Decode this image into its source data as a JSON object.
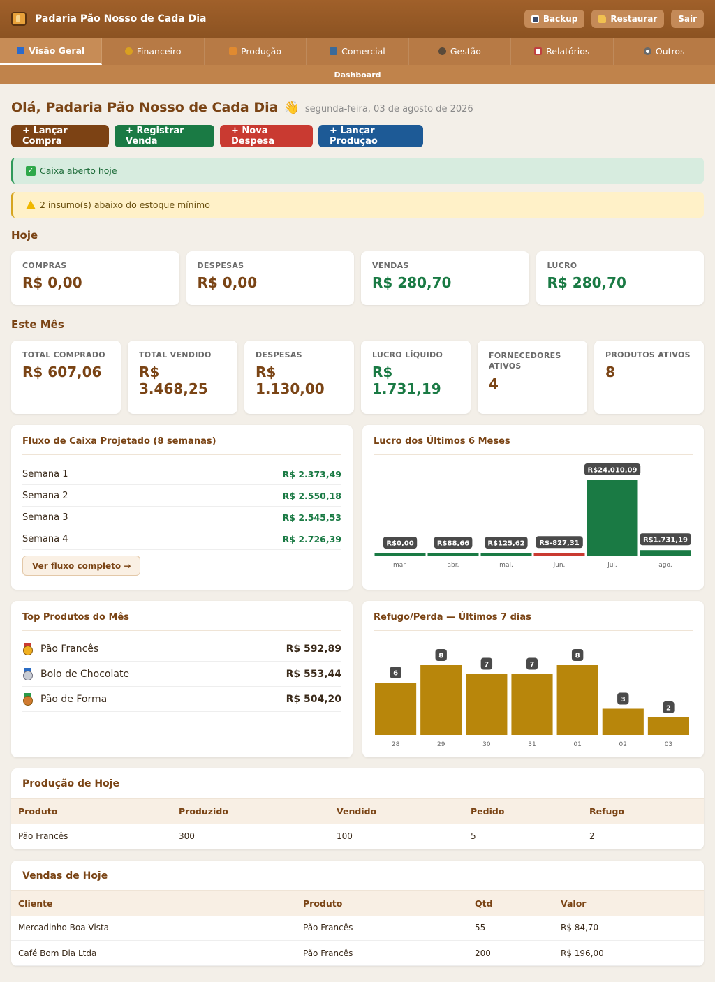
{
  "app": {
    "title": "Padaria Pão Nosso de Cada Dia",
    "backup_label": "Backup",
    "restore_label": "Restaurar",
    "logout_label": "Sair"
  },
  "nav": {
    "tabs": [
      {
        "label": "Visão Geral",
        "icon": "chart-icon",
        "color": "#2a6acc"
      },
      {
        "label": "Financeiro",
        "icon": "money-bag-icon",
        "color": "#d9a020"
      },
      {
        "label": "Produção",
        "icon": "bread-icon",
        "color": "#e08a30"
      },
      {
        "label": "Comercial",
        "icon": "cart-icon",
        "color": "#3a6a9a"
      },
      {
        "label": "Gestão",
        "icon": "people-icon",
        "color": "#5a4a3a"
      },
      {
        "label": "Relatórios",
        "icon": "report-icon",
        "color": "#c04040"
      },
      {
        "label": "Outros",
        "icon": "gear-icon",
        "color": "#6a6a6a"
      }
    ],
    "subnav": "Dashboard"
  },
  "greeting": {
    "title": "Olá, Padaria Pão Nosso de Cada Dia",
    "date": "segunda-feira, 03 de agosto de 2026"
  },
  "actions": {
    "buy": "+ Lançar Compra",
    "sale": "+ Registrar Venda",
    "expense": "+ Nova Despesa",
    "production": "+ Lançar Produção"
  },
  "alerts": {
    "cash": "Caixa aberto hoje",
    "stock": "2 insumo(s) abaixo do estoque mínimo"
  },
  "today": {
    "title": "Hoje",
    "cards": [
      {
        "label": "COMPRAS",
        "value": "R$ 0,00",
        "tone": "brown"
      },
      {
        "label": "DESPESAS",
        "value": "R$ 0,00",
        "tone": "brown"
      },
      {
        "label": "VENDAS",
        "value": "R$ 280,70",
        "tone": "green"
      },
      {
        "label": "LUCRO",
        "value": "R$ 280,70",
        "tone": "green"
      }
    ]
  },
  "month": {
    "title": "Este Mês",
    "cards": [
      {
        "label": "TOTAL COMPRADO",
        "value": "R$ 607,06",
        "tone": "brown"
      },
      {
        "label": "TOTAL VENDIDO",
        "value": "R$ 3.468,25",
        "tone": "brown"
      },
      {
        "label": "DESPESAS",
        "value": "R$ 1.130,00",
        "tone": "brown"
      },
      {
        "label": "LUCRO LÍQUIDO",
        "value": "R$ 1.731,19",
        "tone": "green"
      },
      {
        "label": "FORNECEDORES ATIVOS",
        "value": "4",
        "tone": "brown"
      },
      {
        "label": "PRODUTOS ATIVOS",
        "value": "8",
        "tone": "brown"
      }
    ]
  },
  "cashflow": {
    "title": "Fluxo de Caixa Projetado (8 semanas)",
    "rows": [
      {
        "week": "Semana 1",
        "value": "R$ 2.373,49"
      },
      {
        "week": "Semana 2",
        "value": "R$ 2.550,18"
      },
      {
        "week": "Semana 3",
        "value": "R$ 2.545,53"
      },
      {
        "week": "Semana 4",
        "value": "R$ 2.726,39"
      }
    ],
    "link": "Ver fluxo completo →"
  },
  "top_products": {
    "title": "Top Produtos do Mês",
    "items": [
      {
        "name": "Pão Francês",
        "value": "R$ 592,89",
        "medal": "gold"
      },
      {
        "name": "Bolo de Chocolate",
        "value": "R$ 553,44",
        "medal": "silver"
      },
      {
        "name": "Pão de Forma",
        "value": "R$ 504,20",
        "medal": "bronze"
      }
    ]
  },
  "production_today": {
    "title": "Produção de Hoje",
    "headers": [
      "Produto",
      "Produzido",
      "Vendido",
      "Pedido",
      "Refugo"
    ],
    "rows": [
      [
        "Pão Francês",
        "300",
        "100",
        "5",
        "2"
      ]
    ]
  },
  "sales_today": {
    "title": "Vendas de Hoje",
    "headers": [
      "Cliente",
      "Produto",
      "Qtd",
      "Valor"
    ],
    "rows": [
      [
        "Mercadinho Boa Vista",
        "Pão Francês",
        "55",
        "R$ 84,70"
      ],
      [
        "Café Bom Dia Ltda",
        "Pão Francês",
        "200",
        "R$ 196,00"
      ]
    ]
  },
  "chart_data": [
    {
      "type": "bar",
      "title": "Lucro dos Últimos 6 Meses",
      "categories": [
        "mar.",
        "abr.",
        "mai.",
        "jun.",
        "jul.",
        "ago."
      ],
      "values": [
        0,
        88.66,
        125.62,
        -827.31,
        24010.09,
        1731.19
      ],
      "labels": [
        "R$0,00",
        "R$88,66",
        "R$125,62",
        "R$-827,31",
        "R$24.010,09",
        "R$1.731,19"
      ],
      "positive_color": "#1a7a44",
      "negative_color": "#c93a31"
    },
    {
      "type": "bar",
      "title": "Refugo/Perda — Últimos 7 dias",
      "categories": [
        "28",
        "29",
        "30",
        "31",
        "01",
        "02",
        "03"
      ],
      "values": [
        6,
        8,
        7,
        7,
        8,
        3,
        2
      ],
      "color": "#b8860b"
    }
  ]
}
